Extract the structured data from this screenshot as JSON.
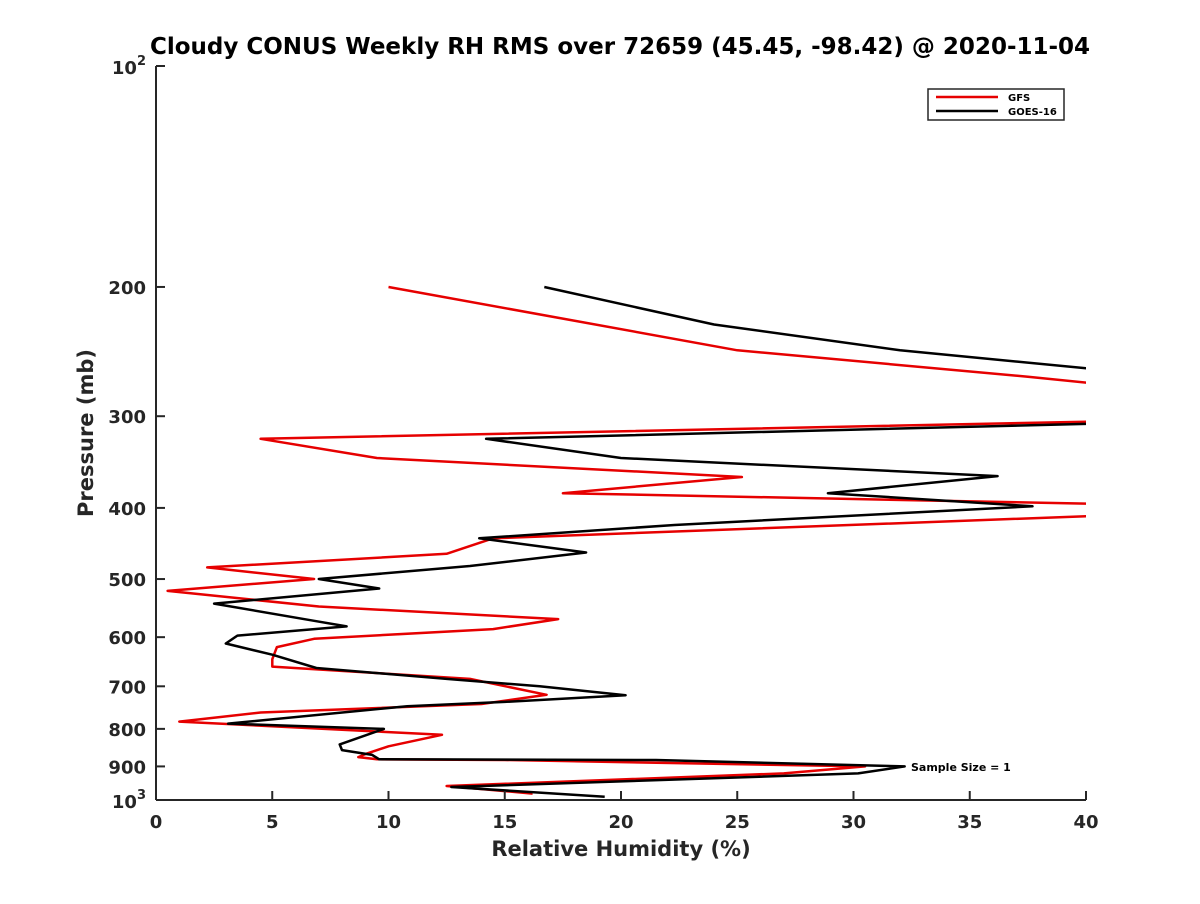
{
  "chart_data": {
    "type": "line",
    "title": "Cloudy CONUS Weekly RH RMS over 72659 (45.45, -98.42) @ 2020-11-04",
    "xlabel": "Relative Humidity (%)",
    "ylabel": "Pressure (mb)",
    "xlim": [
      0,
      40
    ],
    "ylim": [
      100,
      1000
    ],
    "y_scale": "log",
    "y_reversed": true,
    "x_ticks": [
      0,
      5,
      10,
      15,
      20,
      25,
      30,
      35,
      40
    ],
    "x_tick_labels": [
      "0",
      "5",
      "10",
      "15",
      "20",
      "25",
      "30",
      "35",
      "40"
    ],
    "y_ticks": [
      200,
      300,
      400,
      500,
      600,
      700,
      800,
      900
    ],
    "y_tick_labels": [
      "200",
      "300",
      "400",
      "500",
      "600",
      "700",
      "800",
      "900"
    ],
    "y_edge_ticks": [
      {
        "value": 100,
        "base": "10",
        "exp": "2"
      },
      {
        "value": 1000,
        "base": "10",
        "exp": "3"
      }
    ],
    "grid": false,
    "legend_position": "top-right",
    "annotation": "Sample Size = 1",
    "series": [
      {
        "name": "GFS",
        "color": "#e60000",
        "points": [
          [
            10.0,
            200
          ],
          [
            25.0,
            244
          ],
          [
            37.5,
            265
          ],
          [
            40.5,
            271
          ],
          [
            40.5,
            305
          ],
          [
            4.5,
            322
          ],
          [
            9.5,
            342
          ],
          [
            25.2,
            363
          ],
          [
            17.5,
            382
          ],
          [
            40.5,
            395
          ],
          [
            40.5,
            410
          ],
          [
            14.5,
            440
          ],
          [
            12.5,
            462
          ],
          [
            2.2,
            482
          ],
          [
            6.8,
            500
          ],
          [
            0.5,
            519
          ],
          [
            7.0,
            545
          ],
          [
            17.3,
            567
          ],
          [
            14.5,
            585
          ],
          [
            6.8,
            603
          ],
          [
            5.2,
            619
          ],
          [
            5.0,
            643
          ],
          [
            5.0,
            658
          ],
          [
            13.5,
            684
          ],
          [
            16.8,
            719
          ],
          [
            14.0,
            740
          ],
          [
            4.5,
            760
          ],
          [
            1.0,
            782
          ],
          [
            12.3,
            815
          ],
          [
            10.0,
            845
          ],
          [
            9.0,
            866
          ],
          [
            8.7,
            874
          ],
          [
            9.5,
            880
          ],
          [
            15.0,
            882
          ],
          [
            30.5,
            900
          ],
          [
            27.0,
            920
          ],
          [
            12.5,
            957
          ],
          [
            16.2,
            980
          ]
        ]
      },
      {
        "name": "GOES-16",
        "color": "#000000",
        "points": [
          [
            16.7,
            200
          ],
          [
            24.0,
            225
          ],
          [
            32.0,
            244
          ],
          [
            40.5,
            259
          ],
          [
            40.5,
            307
          ],
          [
            14.2,
            322
          ],
          [
            20.0,
            342
          ],
          [
            36.2,
            362
          ],
          [
            28.9,
            382
          ],
          [
            37.7,
            398
          ],
          [
            22.3,
            422
          ],
          [
            13.9,
            440
          ],
          [
            18.5,
            460
          ],
          [
            13.5,
            480
          ],
          [
            7.0,
            500
          ],
          [
            9.6,
            515
          ],
          [
            2.5,
            540
          ],
          [
            6.8,
            570
          ],
          [
            8.2,
            580
          ],
          [
            3.5,
            597
          ],
          [
            3.0,
            612
          ],
          [
            5.0,
            634
          ],
          [
            6.9,
            661
          ],
          [
            12.5,
            684
          ],
          [
            16.5,
            700
          ],
          [
            20.2,
            720
          ],
          [
            15.0,
            735
          ],
          [
            10.8,
            745
          ],
          [
            3.1,
            787
          ],
          [
            9.8,
            800
          ],
          [
            7.9,
            840
          ],
          [
            8.0,
            855
          ],
          [
            9.3,
            868
          ],
          [
            9.6,
            880
          ],
          [
            21.5,
            882
          ],
          [
            32.2,
            900
          ],
          [
            30.2,
            920
          ],
          [
            12.7,
            960
          ],
          [
            19.3,
            990
          ]
        ]
      }
    ]
  }
}
